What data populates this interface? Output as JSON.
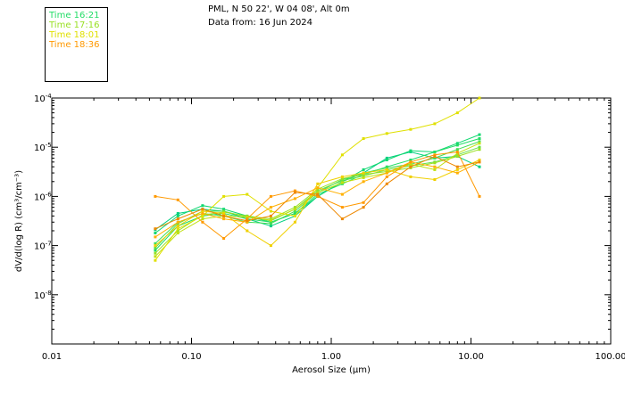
{
  "header": {
    "line1": "PML, N 50 22', W 04 08', Alt 0m",
    "line2": "Data from: 16 Jun 2024"
  },
  "legend": [
    {
      "label": "Time 16:21",
      "color": "#22dd66"
    },
    {
      "label": "Time 17:16",
      "color": "#99e022"
    },
    {
      "label": "Time 18:01",
      "color": "#e0e000"
    },
    {
      "label": "Time 18:36",
      "color": "#ff9900"
    }
  ],
  "chart_data": {
    "type": "line",
    "xlabel": "Aerosol Size (μm)",
    "ylabel": "dV/d(log R) (cm³/cm⁻³)",
    "xscale": "log",
    "yscale": "log",
    "xlim": [
      0.01,
      100
    ],
    "ylim": [
      1e-09,
      0.0001
    ],
    "x_ticks": [
      "0.01",
      "0.10",
      "1.00",
      "10.00",
      "100.00"
    ],
    "y_ticks": [
      {
        "mant": "10",
        "exp": "-4"
      },
      {
        "mant": "10",
        "exp": "-5"
      },
      {
        "mant": "10",
        "exp": "-6"
      },
      {
        "mant": "10",
        "exp": "-7"
      },
      {
        "mant": "10",
        "exp": "-8"
      }
    ],
    "x": [
      0.055,
      0.08,
      0.12,
      0.17,
      0.25,
      0.37,
      0.55,
      0.8,
      1.2,
      1.7,
      2.5,
      3.7,
      5.5,
      8.0,
      11.5
    ],
    "series": [
      {
        "color": "#00d080",
        "values": [
          2.1e-07,
          4.5e-07,
          5.5e-07,
          5e-07,
          3.5e-07,
          2.5e-07,
          4e-07,
          1e-06,
          2e-06,
          3e-06,
          6e-06,
          8e-06,
          6e-06,
          6.5e-06,
          4e-06
        ]
      },
      {
        "color": "#10d870",
        "values": [
          1.8e-07,
          4e-07,
          6.5e-07,
          5.5e-07,
          4e-07,
          3e-07,
          4.5e-07,
          1e-06,
          2e-06,
          3.5e-06,
          5.5e-06,
          8.5e-06,
          8e-06,
          1.2e-05,
          1.8e-05
        ]
      },
      {
        "color": "#22dd66",
        "values": [
          8e-08,
          2.5e-07,
          4e-07,
          4.5e-07,
          3.5e-07,
          3e-07,
          4.5e-07,
          1.1e-06,
          1.8e-06,
          2.8e-06,
          4e-06,
          5.5e-06,
          8e-06,
          1.1e-05,
          1.5e-05
        ]
      },
      {
        "color": "#44dd55",
        "values": [
          1.1e-07,
          3e-07,
          4.5e-07,
          4e-07,
          3e-07,
          2.8e-07,
          5e-07,
          1.2e-06,
          2.2e-06,
          3e-06,
          3.8e-06,
          4.5e-06,
          6e-06,
          9e-06,
          1.3e-05
        ]
      },
      {
        "color": "#66e044",
        "values": [
          9e-08,
          2.8e-07,
          5e-07,
          5e-07,
          3.8e-07,
          3.2e-07,
          5.5e-07,
          1.3e-06,
          2.1e-06,
          2.6e-06,
          3.5e-06,
          4.2e-06,
          5e-06,
          7e-06,
          1e-05
        ]
      },
      {
        "color": "#99e022",
        "values": [
          7e-08,
          2e-07,
          4.2e-07,
          4.8e-07,
          4e-07,
          3.5e-07,
          6e-07,
          1.4e-06,
          2.3e-06,
          2.8e-06,
          3.2e-06,
          3.8e-06,
          4.8e-06,
          6.5e-06,
          9e-06
        ]
      },
      {
        "color": "#c0e010",
        "values": [
          6e-08,
          1.8e-07,
          3.5e-07,
          4e-07,
          3.8e-07,
          3.3e-07,
          5.5e-07,
          1.2e-06,
          1.9e-06,
          2.4e-06,
          3e-06,
          4.5e-06,
          3.5e-06,
          7.5e-06,
          1.2e-05
        ]
      },
      {
        "color": "#e0e000",
        "values": [
          5e-08,
          2.2e-07,
          4e-07,
          1e-06,
          1.1e-06,
          5e-07,
          4e-07,
          1.5e-06,
          7e-06,
          1.5e-05,
          1.9e-05,
          2.3e-05,
          3e-05,
          5e-05,
          0.0001
        ]
      },
      {
        "color": "#f0d000",
        "values": [
          1e-07,
          2.5e-07,
          5e-07,
          4.5e-07,
          2e-07,
          1e-07,
          3e-07,
          1.8e-06,
          2.5e-06,
          3e-06,
          3.5e-06,
          2.5e-06,
          2.2e-06,
          3.5e-06,
          5.5e-06
        ]
      },
      {
        "color": "#ffb000",
        "values": [
          1.5e-07,
          3e-07,
          4.5e-07,
          3.5e-07,
          3e-07,
          6e-07,
          9e-07,
          1.5e-06,
          1.1e-06,
          2e-06,
          3e-06,
          5e-06,
          4e-06,
          3e-06,
          5e-06
        ]
      },
      {
        "color": "#ff9900",
        "values": [
          1e-06,
          8.5e-07,
          3e-07,
          1.4e-07,
          3.5e-07,
          1e-06,
          1.3e-06,
          1e-06,
          6e-07,
          7.5e-07,
          2.5e-06,
          5e-06,
          7e-06,
          8e-06,
          1e-06
        ]
      },
      {
        "color": "#ee8800",
        "values": [
          2.2e-07,
          3.5e-07,
          5.5e-07,
          4e-07,
          3.2e-07,
          4e-07,
          1.2e-06,
          1.1e-06,
          3.5e-07,
          6e-07,
          1.8e-06,
          4e-06,
          6.5e-06,
          4e-06,
          5e-06
        ]
      }
    ]
  }
}
